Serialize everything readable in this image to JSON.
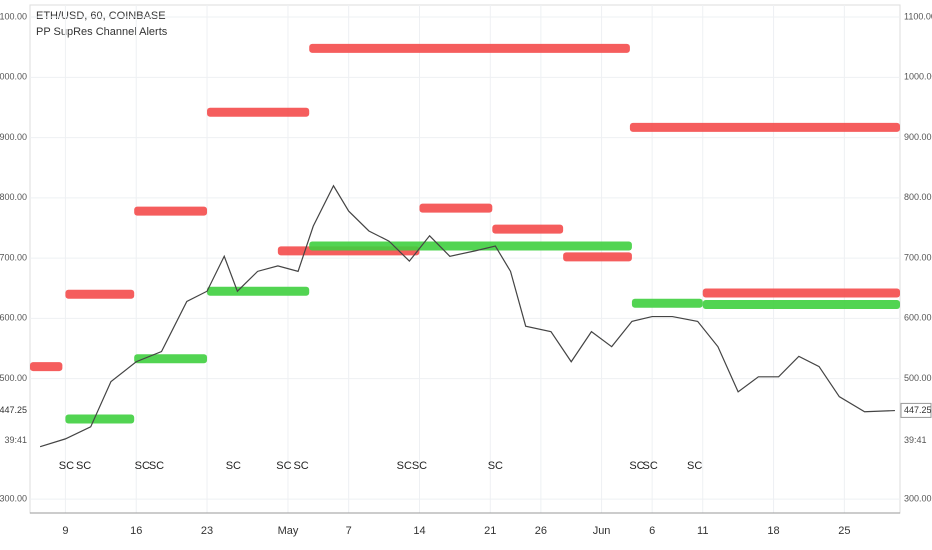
{
  "chart_data": {
    "type": "line",
    "title": "ETH/USD, 60, COINBASE",
    "subtitle": "PP SupRes Channel Alerts",
    "xlim": [
      5.5,
      91.5
    ],
    "xticks": [
      {
        "value": 9,
        "label": "9"
      },
      {
        "value": 16,
        "label": "16"
      },
      {
        "value": 23,
        "label": "23"
      },
      {
        "value": 31,
        "label": "May"
      },
      {
        "value": 37,
        "label": "7"
      },
      {
        "value": 44,
        "label": "14"
      },
      {
        "value": 51,
        "label": "21"
      },
      {
        "value": 56,
        "label": "26"
      },
      {
        "value": 62,
        "label": "Jun"
      },
      {
        "value": 67,
        "label": "6"
      },
      {
        "value": 72,
        "label": "11"
      },
      {
        "value": 79,
        "label": "18"
      },
      {
        "value": 86,
        "label": "25"
      }
    ],
    "ylim": [
      277,
      1120
    ],
    "yticks": [
      {
        "value": 300,
        "label": "300.00"
      },
      {
        "value": 500,
        "label": "500.00"
      },
      {
        "value": 600,
        "label": "600.00"
      },
      {
        "value": 700,
        "label": "700.00"
      },
      {
        "value": 800,
        "label": "800.00"
      },
      {
        "value": 900,
        "label": "900.00"
      },
      {
        "value": 1000,
        "label": "1000.00"
      },
      {
        "value": 1100,
        "label": "1100.00"
      }
    ],
    "grid": true,
    "last_price": 447.25,
    "countdown": "39:41",
    "x": [
      6.5,
      9,
      11.5,
      13.5,
      16,
      18.5,
      21,
      23,
      24.7,
      26,
      28,
      30,
      32,
      33.5,
      35.5,
      37,
      39,
      41,
      43,
      45,
      47,
      49.5,
      51.5,
      53,
      54.5,
      57,
      59,
      61,
      63,
      65,
      67,
      69,
      71.5,
      73.5,
      75.5,
      77.5,
      79.5,
      81.5,
      83.5,
      85.5,
      88,
      91
    ],
    "series": [
      {
        "name": "ETH/USD",
        "color": "#444444",
        "values": [
          387,
          400,
          420,
          495,
          528,
          545,
          628,
          645,
          703,
          645,
          678,
          687,
          678,
          753,
          820,
          778,
          745,
          728,
          695,
          737,
          703,
          712,
          720,
          678,
          587,
          578,
          528,
          578,
          553,
          595,
          603,
          603,
          595,
          553,
          478,
          503,
          503,
          537,
          520,
          470,
          445,
          447
        ]
      }
    ],
    "resistance": {
      "color": "#f44b4b",
      "levels": [
        {
          "start": 5.5,
          "end": 8.7,
          "value": 520
        },
        {
          "start": 9,
          "end": 15.8,
          "value": 640
        },
        {
          "start": 15.8,
          "end": 23,
          "value": 778
        },
        {
          "start": 23,
          "end": 33.1,
          "value": 942
        },
        {
          "start": 33.1,
          "end": 64.8,
          "value": 1048
        },
        {
          "start": 64.8,
          "end": 91.5,
          "value": 917
        },
        {
          "start": 30,
          "end": 44,
          "value": 712
        },
        {
          "start": 44,
          "end": 51.2,
          "value": 783
        },
        {
          "start": 51.2,
          "end": 58.2,
          "value": 748
        },
        {
          "start": 58.2,
          "end": 65,
          "value": 702
        },
        {
          "start": 72,
          "end": 91.5,
          "value": 642
        }
      ]
    },
    "support": {
      "color": "#3fcf3f",
      "levels": [
        {
          "start": 9,
          "end": 15.8,
          "value": 433
        },
        {
          "start": 15.8,
          "end": 23,
          "value": 533
        },
        {
          "start": 23,
          "end": 33.1,
          "value": 645
        },
        {
          "start": 33.1,
          "end": 65,
          "value": 720
        },
        {
          "start": 65,
          "end": 72,
          "value": 625
        },
        {
          "start": 72,
          "end": 91.5,
          "value": 623
        }
      ]
    },
    "annotations": [
      {
        "x": 9.1,
        "label": "SC"
      },
      {
        "x": 10.8,
        "label": "SC"
      },
      {
        "x": 16.6,
        "label": "SC"
      },
      {
        "x": 18,
        "label": "SC"
      },
      {
        "x": 25.6,
        "label": "SC"
      },
      {
        "x": 30.6,
        "label": "SC"
      },
      {
        "x": 32.3,
        "label": "SC"
      },
      {
        "x": 42.5,
        "label": "SC"
      },
      {
        "x": 44,
        "label": "SC"
      },
      {
        "x": 51.5,
        "label": "SC"
      },
      {
        "x": 65.5,
        "label": "SC"
      },
      {
        "x": 66.8,
        "label": "SC"
      },
      {
        "x": 71.2,
        "label": "SC"
      }
    ]
  }
}
